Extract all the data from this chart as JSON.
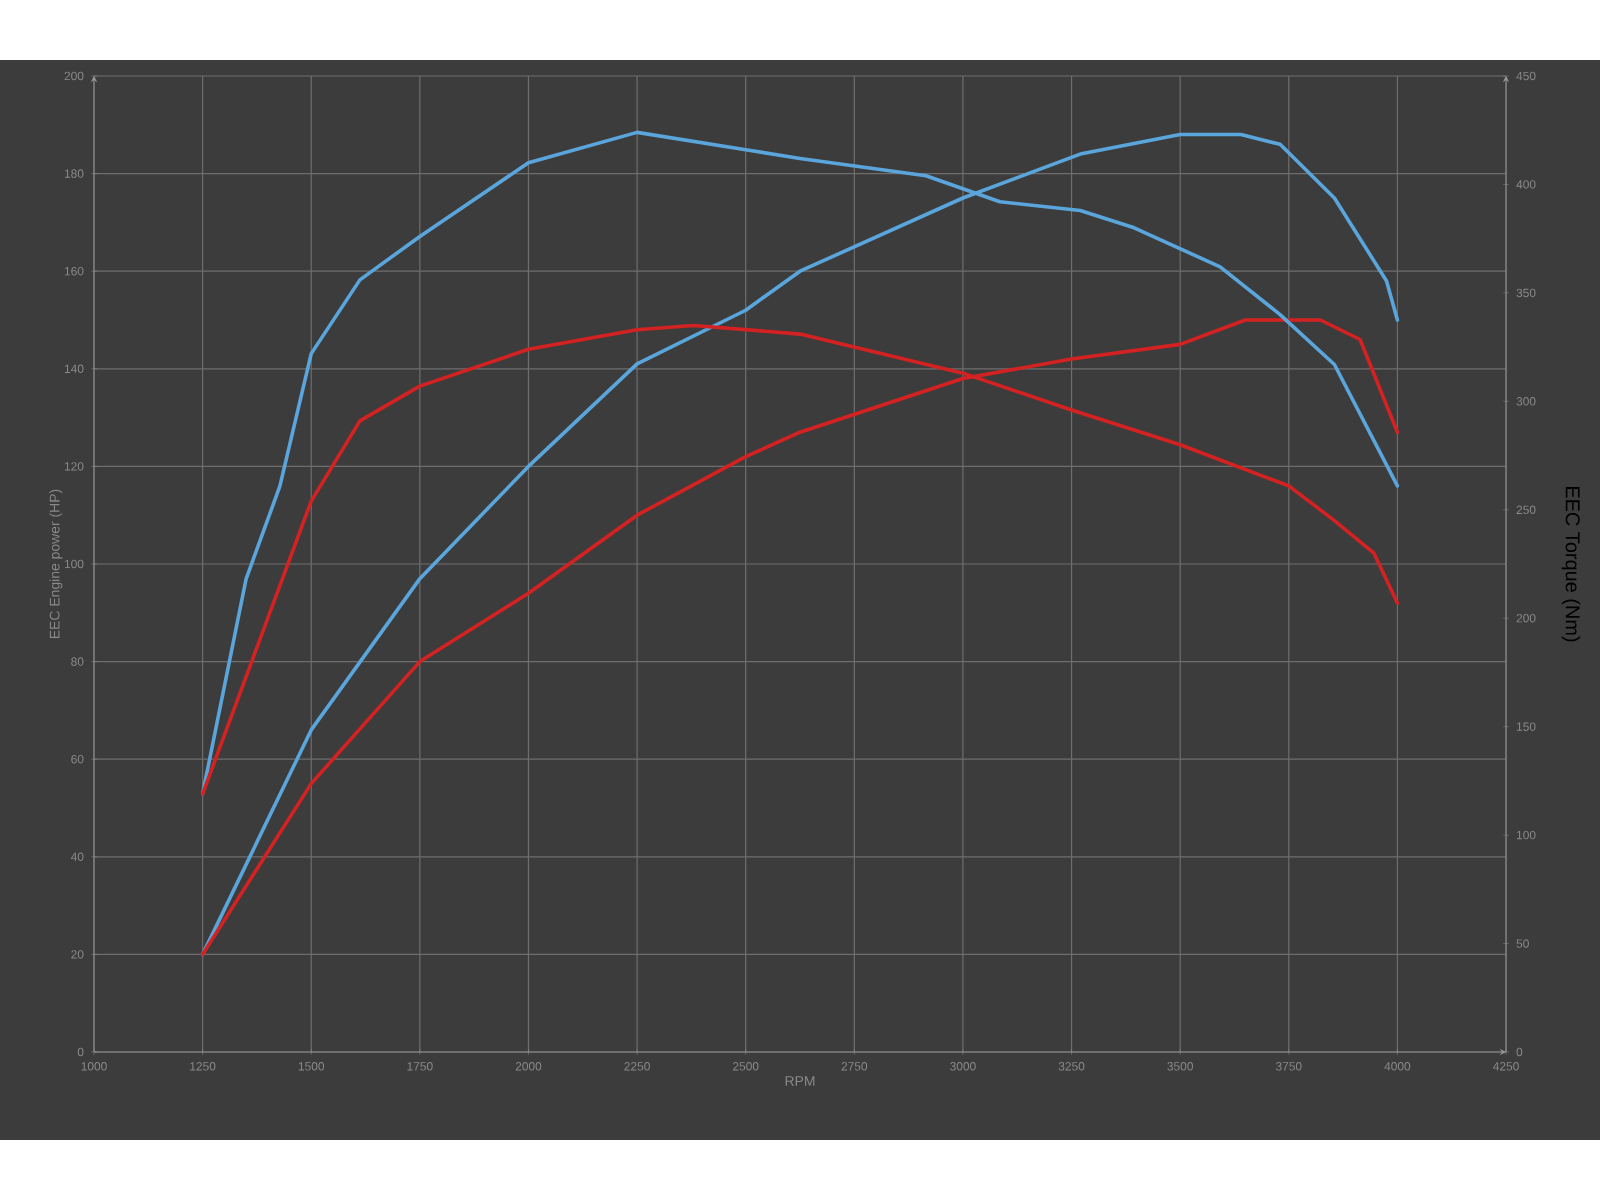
{
  "chart_data": {
    "type": "line",
    "xlabel": "RPM",
    "ylabel": "EEC Engine power (HP)",
    "y2label": "EEC Torque (Nm)",
    "xlim": [
      1000,
      4250
    ],
    "xticks": [
      1000,
      1250,
      1500,
      1750,
      2000,
      2250,
      2500,
      2750,
      3000,
      3250,
      3500,
      3750,
      4000,
      4250
    ],
    "ylim": [
      0,
      200
    ],
    "yticks": [
      0,
      20,
      40,
      60,
      80,
      100,
      120,
      140,
      160,
      180,
      200
    ],
    "y2lim": [
      0,
      450
    ],
    "y2ticks": [
      0,
      50,
      100,
      150,
      200,
      250,
      300,
      350,
      400,
      450
    ],
    "grid": true,
    "series": [
      {
        "color": "#5aa6dc",
        "axis": "y",
        "x": [
          1250,
          1500,
          1750,
          2000,
          2250,
          2500,
          2625,
          3000,
          3270,
          3500,
          3640,
          3730,
          3855,
          3975,
          4000
        ],
        "values": [
          20,
          66,
          97,
          120,
          141,
          152,
          160,
          175,
          184,
          188,
          188,
          186,
          175,
          158,
          150
        ]
      },
      {
        "color": "#5aa6dc",
        "axis": "y2",
        "x": [
          1250,
          1350,
          1428,
          1500,
          1612,
          1750,
          2000,
          2250,
          2500,
          2625,
          2915,
          3085,
          3270,
          3394,
          3592,
          3730,
          3855,
          4000
        ],
        "values": [
          119,
          218,
          261,
          322,
          356,
          376,
          410,
          424,
          416,
          412,
          404,
          392,
          388,
          380,
          362,
          340,
          317,
          261
        ]
      },
      {
        "color": "#d42222",
        "axis": "y",
        "x": [
          1250,
          1500,
          1750,
          2000,
          2250,
          2500,
          2625,
          3000,
          3250,
          3500,
          3650,
          3823,
          3914,
          4000
        ],
        "values": [
          20,
          55,
          80,
          94,
          110,
          122,
          127,
          138,
          142,
          145,
          150,
          150,
          146,
          127
        ]
      },
      {
        "color": "#d42222",
        "axis": "y2",
        "x": [
          1250,
          1500,
          1612,
          1750,
          2000,
          2250,
          2380,
          2625,
          3000,
          3250,
          3500,
          3750,
          3855,
          3946,
          4000
        ],
        "values": [
          119,
          254,
          291,
          307,
          324,
          333,
          335,
          331,
          313,
          296,
          280,
          261,
          245,
          230,
          207
        ]
      }
    ]
  }
}
